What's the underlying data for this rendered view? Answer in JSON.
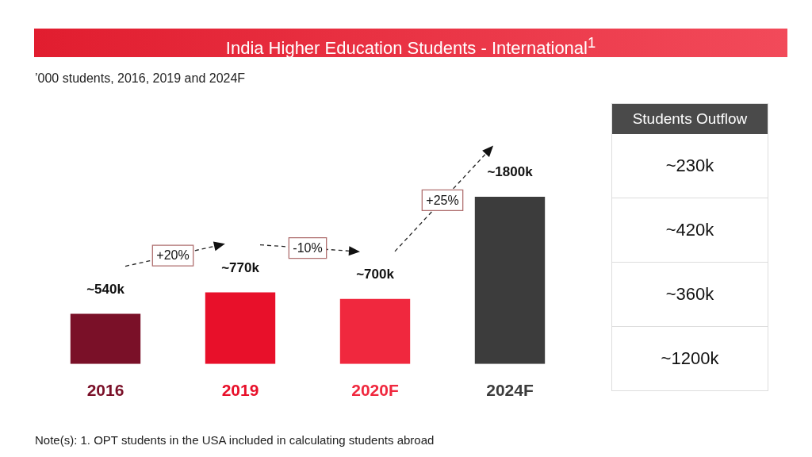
{
  "chart_data": [
    {
      "type": "bar",
      "title": "India Higher Education Students - International$^{1}$",
      "subtitle": "’000 students, 2016, 2019 and 2024F",
      "categories": [
        "2016",
        "2019",
        "2020F",
        "2024F"
      ],
      "values": [
        540,
        770,
        700,
        1800
      ],
      "value_labels": [
        "~540k",
        "~770k",
        "~700k",
        "~1800k"
      ],
      "colors": [
        "#7a1028",
        "#e8102a",
        "#f0283e",
        "#3c3c3c"
      ],
      "tick_labels": "x",
      "annotations": [
        "+20%",
        "-10%",
        "+25%",
        "Note(s): 1. OPT students in the USA  included in calculating students abroad"
      ]
    },
    {
      "type": "other",
      "title": "Students Outflow",
      "annotations": [
        "~230k",
        "~420k",
        "~360k",
        "~1200k"
      ]
    }
  ]
}
